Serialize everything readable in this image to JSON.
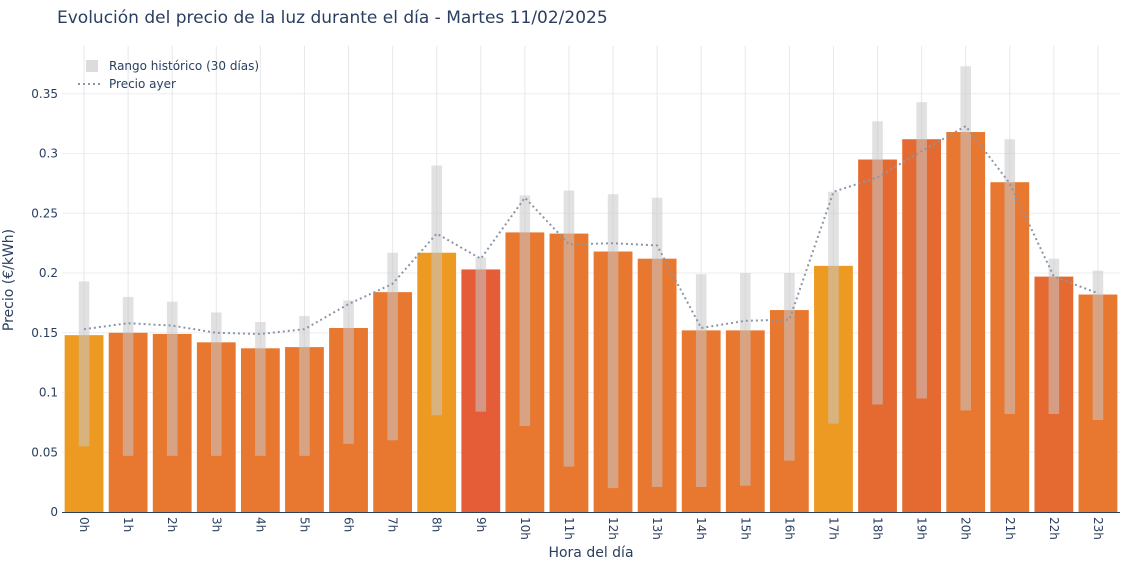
{
  "chart_data": {
    "type": "bar",
    "title": "Evolución del precio de la luz durante el día - Martes 11/02/2025",
    "xlabel": "Hora del día",
    "ylabel": "Precio (€/kWh)",
    "ylim": [
      0,
      0.39
    ],
    "yticks": [
      0,
      0.05,
      0.1,
      0.15,
      0.2,
      0.25,
      0.3,
      0.35
    ],
    "ytick_labels": [
      "0",
      "0.05",
      "0.1",
      "0.15",
      "0.2",
      "0.25",
      "0.3",
      "0.35"
    ],
    "grid": true,
    "legend_position": "top-left",
    "categories": [
      "0h",
      "1h",
      "2h",
      "3h",
      "4h",
      "5h",
      "6h",
      "7h",
      "8h",
      "9h",
      "10h",
      "11h",
      "12h",
      "13h",
      "14h",
      "15h",
      "16h",
      "17h",
      "18h",
      "19h",
      "20h",
      "21h",
      "22h",
      "23h"
    ],
    "series": [
      {
        "kind": "bar",
        "values": [
          0.148,
          0.15,
          0.149,
          0.142,
          0.137,
          0.138,
          0.154,
          0.184,
          0.217,
          0.203,
          0.234,
          0.233,
          0.218,
          0.212,
          0.152,
          0.152,
          0.169,
          0.206,
          0.295,
          0.312,
          0.318,
          0.276,
          0.197,
          0.182
        ],
        "colors": [
          "#ec9a22",
          "#e8772f",
          "#e8772f",
          "#e8772f",
          "#e8772f",
          "#e8772f",
          "#e8772f",
          "#e8772f",
          "#ec9a22",
          "#e45d36",
          "#e8772f",
          "#e8772f",
          "#e8772f",
          "#e8772f",
          "#e8772f",
          "#e8772f",
          "#e8772f",
          "#ec9a22",
          "#e56a32",
          "#e56a32",
          "#e8772f",
          "#e8772f",
          "#e56a32",
          "#e8772f"
        ]
      },
      {
        "name": "Rango histórico (30 días)",
        "kind": "range",
        "low": [
          0.055,
          0.047,
          0.047,
          0.047,
          0.047,
          0.047,
          0.057,
          0.06,
          0.081,
          0.084,
          0.072,
          0.038,
          0.02,
          0.021,
          0.021,
          0.022,
          0.043,
          0.074,
          0.09,
          0.095,
          0.085,
          0.082,
          0.082,
          0.077
        ],
        "high": [
          0.193,
          0.18,
          0.176,
          0.167,
          0.159,
          0.164,
          0.177,
          0.217,
          0.29,
          0.213,
          0.265,
          0.269,
          0.266,
          0.263,
          0.199,
          0.2,
          0.2,
          0.268,
          0.327,
          0.343,
          0.373,
          0.312,
          0.212,
          0.202
        ],
        "color": "#c8c8c8"
      },
      {
        "name": "Precio ayer",
        "kind": "line",
        "values": [
          0.153,
          0.158,
          0.156,
          0.15,
          0.149,
          0.153,
          0.174,
          0.191,
          0.233,
          0.212,
          0.263,
          0.224,
          0.225,
          0.223,
          0.154,
          0.16,
          0.161,
          0.268,
          0.28,
          0.302,
          0.323,
          0.275,
          0.197,
          0.183
        ],
        "color": "#8a97a8",
        "style": "dotted"
      }
    ]
  }
}
